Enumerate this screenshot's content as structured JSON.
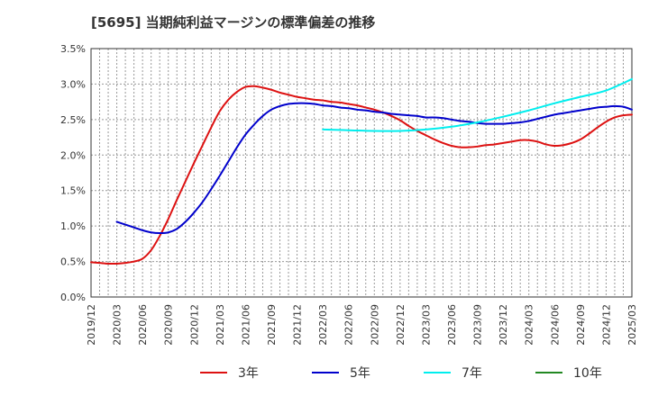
{
  "chart_data": {
    "type": "line",
    "title": "[5695]  当期純利益マージンの標準偏差の推移",
    "xlabel": "",
    "ylabel": "",
    "ylim": [
      0.0,
      3.5
    ],
    "y_ticks": [
      "0.0%",
      "0.5%",
      "1.0%",
      "1.5%",
      "2.0%",
      "2.5%",
      "3.0%",
      "3.5%"
    ],
    "y_tick_values": [
      0.0,
      0.5,
      1.0,
      1.5,
      2.0,
      2.5,
      3.0,
      3.5
    ],
    "x_ticks": [
      "2019/12",
      "2020/03",
      "2020/06",
      "2020/09",
      "2020/12",
      "2021/03",
      "2021/06",
      "2021/09",
      "2021/12",
      "2022/03",
      "2022/06",
      "2022/09",
      "2022/12",
      "2023/03",
      "2023/06",
      "2023/09",
      "2023/12",
      "2024/03",
      "2024/06",
      "2024/09",
      "2024/12",
      "2025/03"
    ],
    "grid": true,
    "legend_position": "bottom",
    "series": [
      {
        "name": "3年",
        "color": "#dd1111",
        "points": [
          [
            "2019/12",
            0.49
          ],
          [
            "2020/01",
            0.48
          ],
          [
            "2020/02",
            0.47
          ],
          [
            "2020/03",
            0.47
          ],
          [
            "2020/04",
            0.48
          ],
          [
            "2020/05",
            0.5
          ],
          [
            "2020/06",
            0.54
          ],
          [
            "2020/07",
            0.66
          ],
          [
            "2020/08",
            0.86
          ],
          [
            "2020/09",
            1.1
          ],
          [
            "2020/10",
            1.37
          ],
          [
            "2020/11",
            1.63
          ],
          [
            "2020/12",
            1.89
          ],
          [
            "2021/01",
            2.14
          ],
          [
            "2021/02",
            2.39
          ],
          [
            "2021/03",
            2.62
          ],
          [
            "2021/04",
            2.78
          ],
          [
            "2021/05",
            2.89
          ],
          [
            "2021/06",
            2.96
          ],
          [
            "2021/07",
            2.97
          ],
          [
            "2021/08",
            2.95
          ],
          [
            "2021/09",
            2.92
          ],
          [
            "2021/10",
            2.88
          ],
          [
            "2021/11",
            2.85
          ],
          [
            "2021/12",
            2.82
          ],
          [
            "2022/01",
            2.8
          ],
          [
            "2022/02",
            2.78
          ],
          [
            "2022/03",
            2.77
          ],
          [
            "2022/04",
            2.75
          ],
          [
            "2022/05",
            2.74
          ],
          [
            "2022/06",
            2.72
          ],
          [
            "2022/07",
            2.7
          ],
          [
            "2022/08",
            2.67
          ],
          [
            "2022/09",
            2.64
          ],
          [
            "2022/10",
            2.6
          ],
          [
            "2022/11",
            2.55
          ],
          [
            "2022/12",
            2.49
          ],
          [
            "2023/01",
            2.41
          ],
          [
            "2023/02",
            2.34
          ],
          [
            "2023/03",
            2.28
          ],
          [
            "2023/04",
            2.22
          ],
          [
            "2023/05",
            2.17
          ],
          [
            "2023/06",
            2.13
          ],
          [
            "2023/07",
            2.11
          ],
          [
            "2023/08",
            2.11
          ],
          [
            "2023/09",
            2.12
          ],
          [
            "2023/10",
            2.14
          ],
          [
            "2023/11",
            2.15
          ],
          [
            "2023/12",
            2.17
          ],
          [
            "2024/01",
            2.19
          ],
          [
            "2024/02",
            2.21
          ],
          [
            "2024/03",
            2.21
          ],
          [
            "2024/04",
            2.19
          ],
          [
            "2024/05",
            2.15
          ],
          [
            "2024/06",
            2.13
          ],
          [
            "2024/07",
            2.14
          ],
          [
            "2024/08",
            2.17
          ],
          [
            "2024/09",
            2.22
          ],
          [
            "2024/10",
            2.3
          ],
          [
            "2024/11",
            2.39
          ],
          [
            "2024/12",
            2.47
          ],
          [
            "2025/01",
            2.53
          ],
          [
            "2025/02",
            2.56
          ],
          [
            "2025/03",
            2.57
          ]
        ]
      },
      {
        "name": "5年",
        "color": "#0000cc",
        "points": [
          [
            "2020/03",
            1.06
          ],
          [
            "2020/04",
            1.02
          ],
          [
            "2020/05",
            0.98
          ],
          [
            "2020/06",
            0.94
          ],
          [
            "2020/07",
            0.91
          ],
          [
            "2020/08",
            0.9
          ],
          [
            "2020/09",
            0.91
          ],
          [
            "2020/10",
            0.96
          ],
          [
            "2020/11",
            1.06
          ],
          [
            "2020/12",
            1.19
          ],
          [
            "2021/01",
            1.34
          ],
          [
            "2021/02",
            1.52
          ],
          [
            "2021/03",
            1.71
          ],
          [
            "2021/04",
            1.91
          ],
          [
            "2021/05",
            2.11
          ],
          [
            "2021/06",
            2.29
          ],
          [
            "2021/07",
            2.43
          ],
          [
            "2021/08",
            2.55
          ],
          [
            "2021/09",
            2.64
          ],
          [
            "2021/10",
            2.69
          ],
          [
            "2021/11",
            2.72
          ],
          [
            "2021/12",
            2.73
          ],
          [
            "2022/01",
            2.73
          ],
          [
            "2022/02",
            2.72
          ],
          [
            "2022/03",
            2.7
          ],
          [
            "2022/04",
            2.69
          ],
          [
            "2022/05",
            2.67
          ],
          [
            "2022/06",
            2.66
          ],
          [
            "2022/07",
            2.64
          ],
          [
            "2022/08",
            2.63
          ],
          [
            "2022/09",
            2.61
          ],
          [
            "2022/10",
            2.6
          ],
          [
            "2022/11",
            2.58
          ],
          [
            "2022/12",
            2.57
          ],
          [
            "2023/01",
            2.56
          ],
          [
            "2023/02",
            2.55
          ],
          [
            "2023/03",
            2.53
          ],
          [
            "2023/04",
            2.53
          ],
          [
            "2023/05",
            2.52
          ],
          [
            "2023/06",
            2.5
          ],
          [
            "2023/07",
            2.48
          ],
          [
            "2023/08",
            2.47
          ],
          [
            "2023/09",
            2.45
          ],
          [
            "2023/10",
            2.44
          ],
          [
            "2023/11",
            2.44
          ],
          [
            "2023/12",
            2.44
          ],
          [
            "2024/01",
            2.45
          ],
          [
            "2024/02",
            2.46
          ],
          [
            "2024/03",
            2.48
          ],
          [
            "2024/04",
            2.51
          ],
          [
            "2024/05",
            2.54
          ],
          [
            "2024/06",
            2.57
          ],
          [
            "2024/07",
            2.59
          ],
          [
            "2024/08",
            2.61
          ],
          [
            "2024/09",
            2.63
          ],
          [
            "2024/10",
            2.65
          ],
          [
            "2024/11",
            2.67
          ],
          [
            "2024/12",
            2.68
          ],
          [
            "2025/01",
            2.69
          ],
          [
            "2025/02",
            2.68
          ],
          [
            "2025/03",
            2.64
          ]
        ]
      },
      {
        "name": "7年",
        "color": "#00eeee",
        "points": [
          [
            "2022/03",
            2.36
          ],
          [
            "2022/06",
            2.35
          ],
          [
            "2022/09",
            2.34
          ],
          [
            "2022/12",
            2.34
          ],
          [
            "2023/03",
            2.36
          ],
          [
            "2023/06",
            2.4
          ],
          [
            "2023/09",
            2.46
          ],
          [
            "2023/12",
            2.54
          ],
          [
            "2024/03",
            2.63
          ],
          [
            "2024/06",
            2.73
          ],
          [
            "2024/09",
            2.82
          ],
          [
            "2024/12",
            2.91
          ],
          [
            "2025/03",
            3.07
          ]
        ]
      },
      {
        "name": "10年",
        "color": "#228822",
        "points": []
      }
    ]
  }
}
